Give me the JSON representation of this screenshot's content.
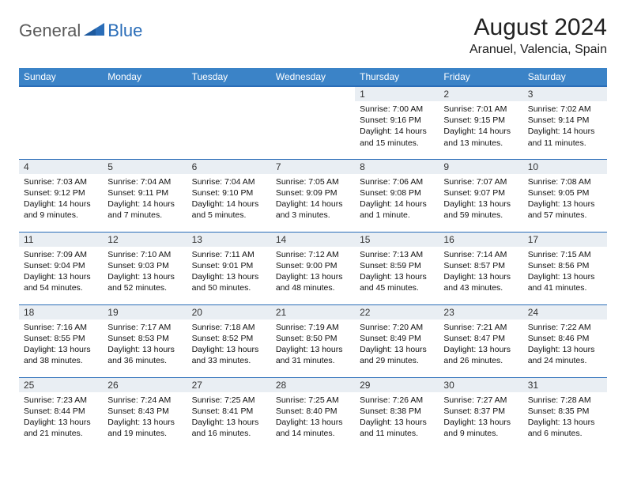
{
  "logo": {
    "general": "General",
    "blue": "Blue"
  },
  "title": "August 2024",
  "location": "Aranuel, Valencia, Spain",
  "header_bg": "#3b83c7",
  "border_color": "#2a6db8",
  "daynum_bg": "#e9eef3",
  "weekdays": [
    "Sunday",
    "Monday",
    "Tuesday",
    "Wednesday",
    "Thursday",
    "Friday",
    "Saturday"
  ],
  "weeks": [
    [
      {
        "n": "",
        "lines": []
      },
      {
        "n": "",
        "lines": []
      },
      {
        "n": "",
        "lines": []
      },
      {
        "n": "",
        "lines": []
      },
      {
        "n": "1",
        "lines": [
          "Sunrise: 7:00 AM",
          "Sunset: 9:16 PM",
          "Daylight: 14 hours and 15 minutes."
        ]
      },
      {
        "n": "2",
        "lines": [
          "Sunrise: 7:01 AM",
          "Sunset: 9:15 PM",
          "Daylight: 14 hours and 13 minutes."
        ]
      },
      {
        "n": "3",
        "lines": [
          "Sunrise: 7:02 AM",
          "Sunset: 9:14 PM",
          "Daylight: 14 hours and 11 minutes."
        ]
      }
    ],
    [
      {
        "n": "4",
        "lines": [
          "Sunrise: 7:03 AM",
          "Sunset: 9:12 PM",
          "Daylight: 14 hours and 9 minutes."
        ]
      },
      {
        "n": "5",
        "lines": [
          "Sunrise: 7:04 AM",
          "Sunset: 9:11 PM",
          "Daylight: 14 hours and 7 minutes."
        ]
      },
      {
        "n": "6",
        "lines": [
          "Sunrise: 7:04 AM",
          "Sunset: 9:10 PM",
          "Daylight: 14 hours and 5 minutes."
        ]
      },
      {
        "n": "7",
        "lines": [
          "Sunrise: 7:05 AM",
          "Sunset: 9:09 PM",
          "Daylight: 14 hours and 3 minutes."
        ]
      },
      {
        "n": "8",
        "lines": [
          "Sunrise: 7:06 AM",
          "Sunset: 9:08 PM",
          "Daylight: 14 hours and 1 minute."
        ]
      },
      {
        "n": "9",
        "lines": [
          "Sunrise: 7:07 AM",
          "Sunset: 9:07 PM",
          "Daylight: 13 hours and 59 minutes."
        ]
      },
      {
        "n": "10",
        "lines": [
          "Sunrise: 7:08 AM",
          "Sunset: 9:05 PM",
          "Daylight: 13 hours and 57 minutes."
        ]
      }
    ],
    [
      {
        "n": "11",
        "lines": [
          "Sunrise: 7:09 AM",
          "Sunset: 9:04 PM",
          "Daylight: 13 hours and 54 minutes."
        ]
      },
      {
        "n": "12",
        "lines": [
          "Sunrise: 7:10 AM",
          "Sunset: 9:03 PM",
          "Daylight: 13 hours and 52 minutes."
        ]
      },
      {
        "n": "13",
        "lines": [
          "Sunrise: 7:11 AM",
          "Sunset: 9:01 PM",
          "Daylight: 13 hours and 50 minutes."
        ]
      },
      {
        "n": "14",
        "lines": [
          "Sunrise: 7:12 AM",
          "Sunset: 9:00 PM",
          "Daylight: 13 hours and 48 minutes."
        ]
      },
      {
        "n": "15",
        "lines": [
          "Sunrise: 7:13 AM",
          "Sunset: 8:59 PM",
          "Daylight: 13 hours and 45 minutes."
        ]
      },
      {
        "n": "16",
        "lines": [
          "Sunrise: 7:14 AM",
          "Sunset: 8:57 PM",
          "Daylight: 13 hours and 43 minutes."
        ]
      },
      {
        "n": "17",
        "lines": [
          "Sunrise: 7:15 AM",
          "Sunset: 8:56 PM",
          "Daylight: 13 hours and 41 minutes."
        ]
      }
    ],
    [
      {
        "n": "18",
        "lines": [
          "Sunrise: 7:16 AM",
          "Sunset: 8:55 PM",
          "Daylight: 13 hours and 38 minutes."
        ]
      },
      {
        "n": "19",
        "lines": [
          "Sunrise: 7:17 AM",
          "Sunset: 8:53 PM",
          "Daylight: 13 hours and 36 minutes."
        ]
      },
      {
        "n": "20",
        "lines": [
          "Sunrise: 7:18 AM",
          "Sunset: 8:52 PM",
          "Daylight: 13 hours and 33 minutes."
        ]
      },
      {
        "n": "21",
        "lines": [
          "Sunrise: 7:19 AM",
          "Sunset: 8:50 PM",
          "Daylight: 13 hours and 31 minutes."
        ]
      },
      {
        "n": "22",
        "lines": [
          "Sunrise: 7:20 AM",
          "Sunset: 8:49 PM",
          "Daylight: 13 hours and 29 minutes."
        ]
      },
      {
        "n": "23",
        "lines": [
          "Sunrise: 7:21 AM",
          "Sunset: 8:47 PM",
          "Daylight: 13 hours and 26 minutes."
        ]
      },
      {
        "n": "24",
        "lines": [
          "Sunrise: 7:22 AM",
          "Sunset: 8:46 PM",
          "Daylight: 13 hours and 24 minutes."
        ]
      }
    ],
    [
      {
        "n": "25",
        "lines": [
          "Sunrise: 7:23 AM",
          "Sunset: 8:44 PM",
          "Daylight: 13 hours and 21 minutes."
        ]
      },
      {
        "n": "26",
        "lines": [
          "Sunrise: 7:24 AM",
          "Sunset: 8:43 PM",
          "Daylight: 13 hours and 19 minutes."
        ]
      },
      {
        "n": "27",
        "lines": [
          "Sunrise: 7:25 AM",
          "Sunset: 8:41 PM",
          "Daylight: 13 hours and 16 minutes."
        ]
      },
      {
        "n": "28",
        "lines": [
          "Sunrise: 7:25 AM",
          "Sunset: 8:40 PM",
          "Daylight: 13 hours and 14 minutes."
        ]
      },
      {
        "n": "29",
        "lines": [
          "Sunrise: 7:26 AM",
          "Sunset: 8:38 PM",
          "Daylight: 13 hours and 11 minutes."
        ]
      },
      {
        "n": "30",
        "lines": [
          "Sunrise: 7:27 AM",
          "Sunset: 8:37 PM",
          "Daylight: 13 hours and 9 minutes."
        ]
      },
      {
        "n": "31",
        "lines": [
          "Sunrise: 7:28 AM",
          "Sunset: 8:35 PM",
          "Daylight: 13 hours and 6 minutes."
        ]
      }
    ]
  ]
}
